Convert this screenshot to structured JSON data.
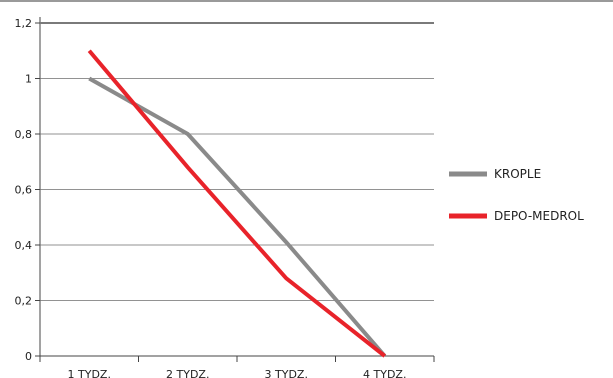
{
  "chart_data": {
    "type": "line",
    "categories": [
      "1 TYDZ.",
      "2 TYDZ.",
      "3 TYDZ.",
      "4 TYDZ."
    ],
    "series": [
      {
        "name": "KROPLE",
        "values": [
          1.0,
          0.8,
          0.41,
          0.0
        ],
        "color": "#8a8a8a"
      },
      {
        "name": "DEPO-MEDROL",
        "values": [
          1.1,
          0.68,
          0.28,
          0.0
        ],
        "color": "#e8232a"
      }
    ],
    "y_ticks": [
      "0",
      "0,2",
      "0,4",
      "0,6",
      "0,8",
      "1",
      "1,2"
    ],
    "ylim": [
      0,
      1.2
    ],
    "grid": true,
    "legend_position": "right"
  }
}
